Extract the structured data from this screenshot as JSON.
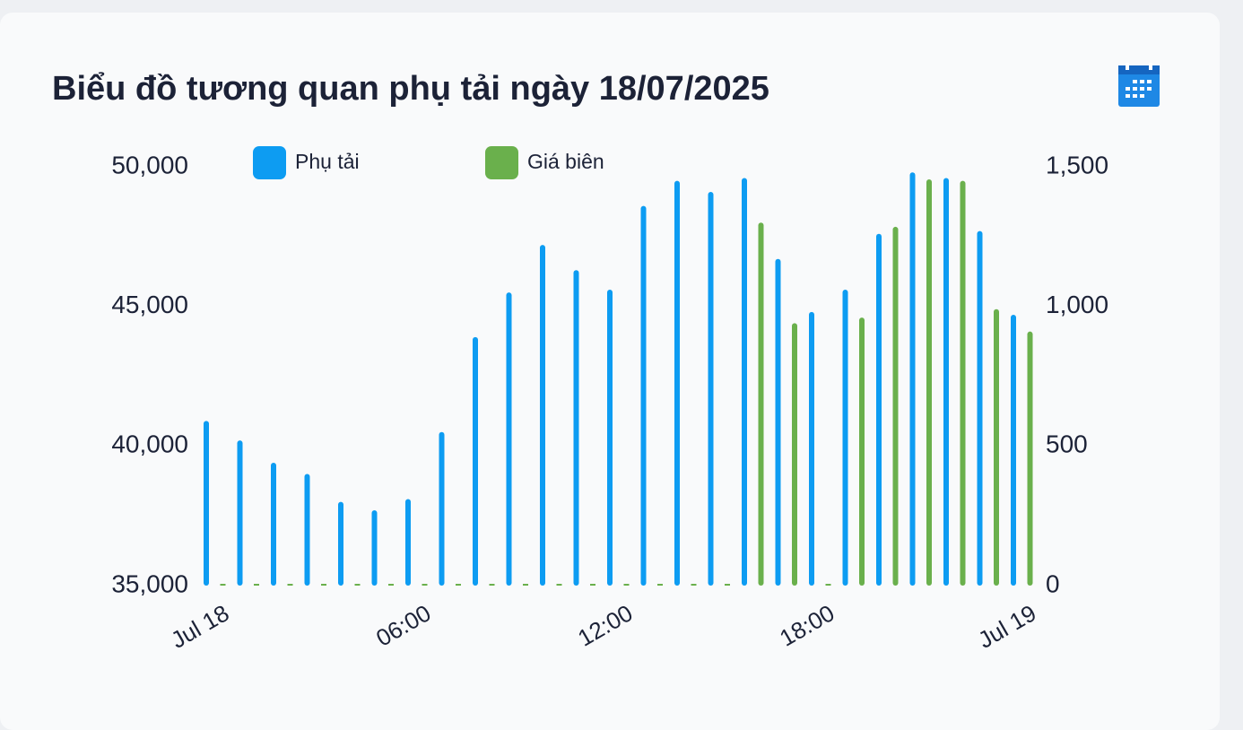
{
  "chart_data": {
    "type": "bar",
    "title": "Biểu đồ tương quan phụ tải ngày 18/07/2025",
    "categories": [
      "Jul 18",
      null,
      null,
      null,
      null,
      null,
      "06:00",
      null,
      null,
      null,
      null,
      null,
      "12:00",
      null,
      null,
      null,
      null,
      null,
      "18:00",
      null,
      null,
      null,
      null,
      null,
      "Jul 19"
    ],
    "series": [
      {
        "name": "Phụ tải",
        "color": "#0d9cf2",
        "values": [
          40900,
          40200,
          39400,
          39000,
          38000,
          37700,
          38100,
          40500,
          43900,
          45500,
          47200,
          46300,
          45600,
          48600,
          49500,
          49100,
          49600,
          46700,
          44800,
          45600,
          47600,
          49800,
          49600,
          47700,
          44700
        ]
      },
      {
        "name": "Giá biên",
        "color": "#6ab04c",
        "axis": "y2",
        "values": [
          0,
          0,
          0,
          0,
          0,
          0,
          0,
          0,
          0,
          0,
          0,
          0,
          0,
          0,
          0,
          0,
          1300,
          940,
          0,
          960,
          1285,
          1455,
          1450,
          990,
          910
        ]
      }
    ],
    "ylim": [
      35000,
      50000
    ],
    "yticks": [
      {
        "value": 35000,
        "label": "35,000"
      },
      {
        "value": 40000,
        "label": "40,000"
      },
      {
        "value": 45000,
        "label": "45,000"
      },
      {
        "value": 50000,
        "label": "50,000"
      }
    ],
    "y2lim": [
      0,
      1500
    ],
    "y2ticks": [
      0,
      500,
      {
        "value": 1000,
        "label": "1,000"
      },
      {
        "value": 1500,
        "label": "1,500"
      }
    ],
    "legend": "top"
  }
}
